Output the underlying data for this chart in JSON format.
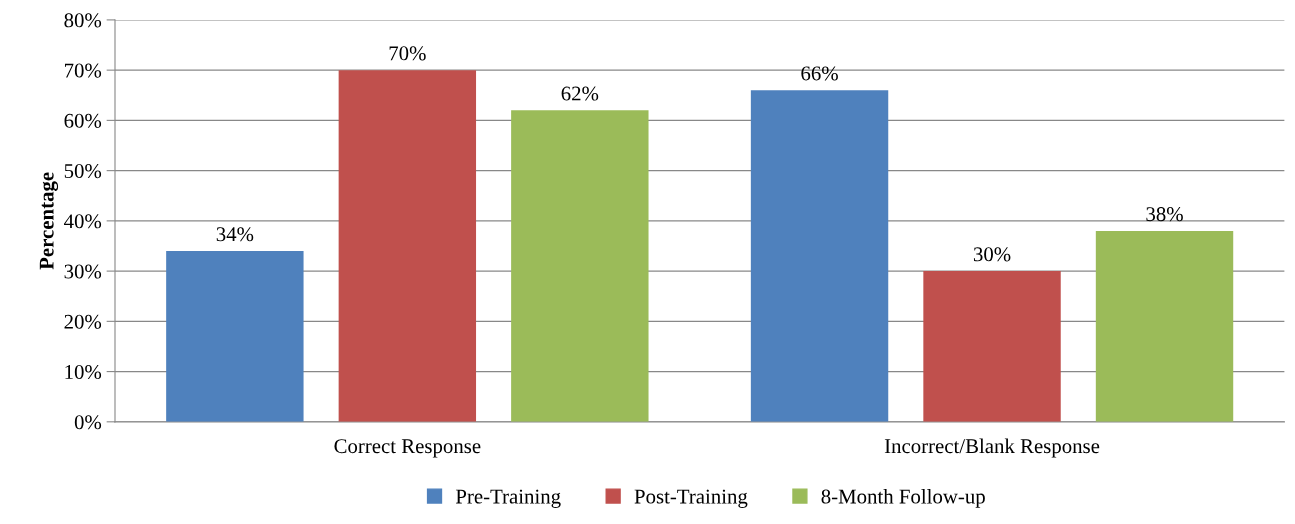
{
  "chart_data": {
    "type": "bar",
    "ylabel": "Percentage",
    "categories": [
      "Correct Response",
      "Incorrect/Blank Response"
    ],
    "series": [
      {
        "name": "Pre-Training",
        "color": "#4f81bd",
        "values": [
          34,
          66
        ],
        "value_labels": [
          "34%",
          "66%"
        ]
      },
      {
        "name": "Post-Training",
        "color": "#c0504d",
        "values": [
          70,
          30
        ],
        "value_labels": [
          "70%",
          "30%"
        ]
      },
      {
        "name": "8-Month Follow-up",
        "color": "#9bbb59",
        "values": [
          62,
          38
        ],
        "value_labels": [
          "62%",
          "38%"
        ]
      }
    ],
    "ylim": [
      0,
      80
    ],
    "yticks": [
      {
        "value": 0,
        "label": "0%"
      },
      {
        "value": 10,
        "label": "10%"
      },
      {
        "value": 20,
        "label": "20%"
      },
      {
        "value": 30,
        "label": "30%"
      },
      {
        "value": 40,
        "label": "40%"
      },
      {
        "value": 50,
        "label": "50%"
      },
      {
        "value": 60,
        "label": "60%"
      },
      {
        "value": 70,
        "label": "70%"
      },
      {
        "value": 80,
        "label": "80%"
      }
    ],
    "grid": "y",
    "legend": "bottom",
    "marker": "square"
  }
}
